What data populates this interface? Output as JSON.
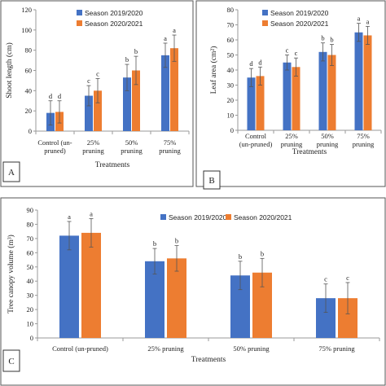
{
  "colors": {
    "s1": "#4472c4",
    "s2": "#ed7d31",
    "axis": "#9a9a9a",
    "error": "#555555"
  },
  "chart_data": [
    {
      "panel": "A",
      "type": "bar",
      "ylabel": "Shoot length (cm)",
      "xlabel": "Treatments",
      "ylim": [
        0,
        120
      ],
      "yticks": [
        0,
        20,
        40,
        60,
        80,
        100,
        120
      ],
      "categories": [
        [
          "Control (un-",
          "pruned)"
        ],
        [
          "25%",
          "pruning"
        ],
        [
          "50%",
          "pruning"
        ],
        [
          "75%",
          "pruning"
        ]
      ],
      "series": [
        {
          "name": "Season 2019/2020",
          "values": [
            18,
            35,
            53,
            75
          ],
          "errors": [
            12,
            10,
            13,
            12
          ],
          "letters": [
            "d",
            "c",
            "b",
            "a"
          ]
        },
        {
          "name": "Season 2020/2021",
          "values": [
            19,
            40,
            60,
            82
          ],
          "errors": [
            11,
            12,
            14,
            13
          ],
          "letters": [
            "d",
            "c",
            "b",
            "a"
          ]
        }
      ],
      "legend_position": "top-left"
    },
    {
      "panel": "B",
      "type": "bar",
      "ylabel": "Leaf area (cm²)",
      "xlabel": "Treatments",
      "ylim": [
        0,
        80
      ],
      "yticks": [
        0,
        10,
        20,
        30,
        40,
        50,
        60,
        70,
        80
      ],
      "categories": [
        [
          "Control",
          "(un-pruned)"
        ],
        [
          "25%",
          "pruning"
        ],
        [
          "50%",
          "pruning"
        ],
        [
          "75%",
          "pruning"
        ]
      ],
      "series": [
        {
          "name": "Season 2019/2020",
          "values": [
            35,
            45,
            52,
            65
          ],
          "errors": [
            6,
            5,
            6,
            6
          ],
          "letters": [
            "d",
            "c",
            "b",
            "a"
          ]
        },
        {
          "name": "Season 2020/2021",
          "values": [
            36,
            42,
            50,
            63
          ],
          "errors": [
            6,
            6,
            7,
            6
          ],
          "letters": [
            "d",
            "c",
            "b",
            "a"
          ]
        }
      ],
      "legend_position": "top-left"
    },
    {
      "panel": "C",
      "type": "bar",
      "ylabel": "Tree canopy volume (m³)",
      "xlabel": "Treatments",
      "ylim": [
        0,
        90
      ],
      "yticks": [
        0,
        10,
        20,
        30,
        40,
        50,
        60,
        70,
        80,
        90
      ],
      "categories": [
        [
          "Control (un-pruned)"
        ],
        [
          "25% pruning"
        ],
        [
          "50% pruning"
        ],
        [
          "75% pruning"
        ]
      ],
      "series": [
        {
          "name": "Season 2019/2020",
          "values": [
            72,
            54,
            44,
            28
          ],
          "errors": [
            10,
            9,
            10,
            10
          ],
          "letters": [
            "a",
            "b",
            "b",
            "c"
          ]
        },
        {
          "name": "Season 2020/2021",
          "values": [
            74,
            56,
            46,
            28
          ],
          "errors": [
            10,
            9,
            10,
            11
          ],
          "letters": [
            "a",
            "b",
            "b",
            "c"
          ]
        }
      ],
      "legend_position": "top-right"
    }
  ]
}
